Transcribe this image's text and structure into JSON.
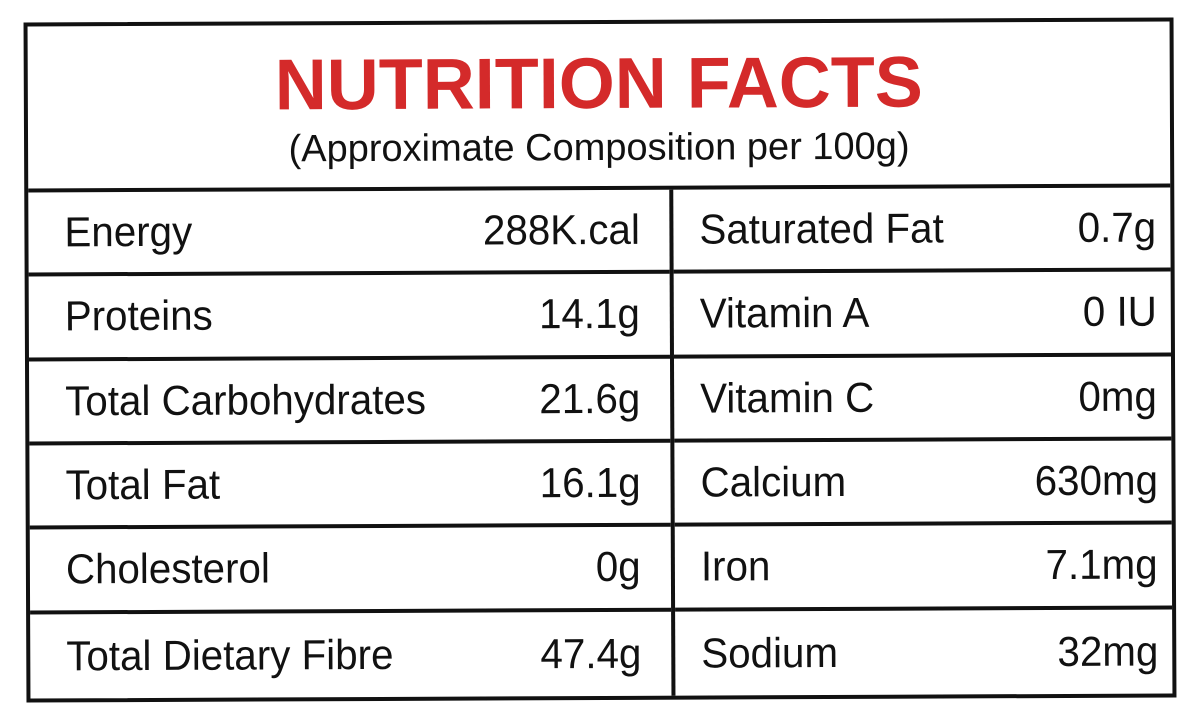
{
  "header": {
    "title": "NUTRITION FACTS",
    "subtitle": "(Approximate Composition per 100g)",
    "title_color": "#d42a2a"
  },
  "left_column": [
    {
      "name": "Energy",
      "value": "288K.cal"
    },
    {
      "name": "Proteins",
      "value": "14.1g"
    },
    {
      "name": "Total Carbohydrates",
      "value": "21.6g"
    },
    {
      "name": "Total Fat",
      "value": "16.1g"
    },
    {
      "name": "Cholesterol",
      "value": "0g"
    },
    {
      "name": "Total Dietary Fibre",
      "value": "47.4g"
    }
  ],
  "right_column": [
    {
      "name": "Saturated Fat",
      "value": "0.7g"
    },
    {
      "name": "Vitamin A",
      "value": "0 IU"
    },
    {
      "name": "Vitamin C",
      "value": "0mg"
    },
    {
      "name": "Calcium",
      "value": "630mg"
    },
    {
      "name": "Iron",
      "value": "7.1mg"
    },
    {
      "name": "Sodium",
      "value": "32mg"
    }
  ]
}
